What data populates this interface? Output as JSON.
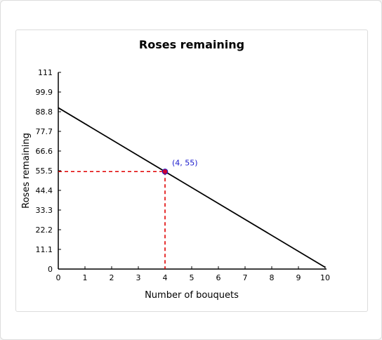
{
  "chart_data": {
    "type": "line",
    "title": "Roses remaining",
    "xlabel": "Number of bouquets",
    "ylabel": "Roses remaining",
    "xlim": [
      0,
      10
    ],
    "ylim": [
      0,
      111
    ],
    "x_ticks": [
      "0",
      "1",
      "2",
      "3",
      "4",
      "5",
      "6",
      "7",
      "8",
      "9",
      "10"
    ],
    "y_ticks": [
      "0",
      "11.1",
      "22.2",
      "33.3",
      "44.4",
      "55.5",
      "66.6",
      "77.7",
      "88.8",
      "99.9",
      "111"
    ],
    "series": [
      {
        "x": [
          0,
          10
        ],
        "y": [
          91,
          1
        ]
      }
    ],
    "highlight_point": {
      "x": 4,
      "y": 55,
      "label": "(4, 55)"
    },
    "grid": false,
    "colors": {
      "line": "#000000",
      "guide": "#e00000",
      "point": "#cc0033",
      "point_label": "#1a1acc"
    }
  }
}
